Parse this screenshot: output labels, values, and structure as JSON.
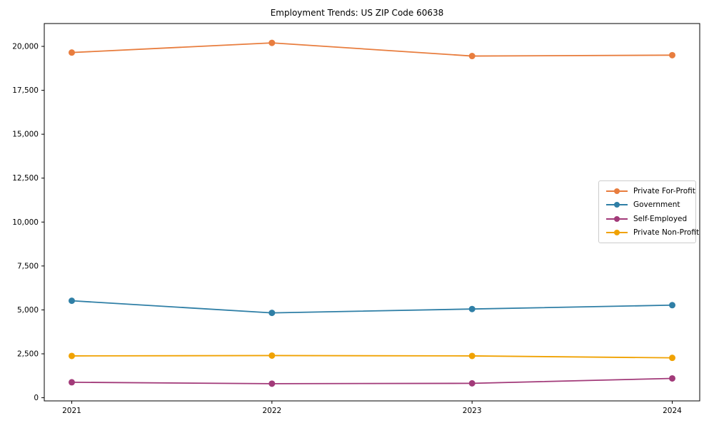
{
  "title": "Employment Trends: US ZIP Code 60638",
  "chart_data": {
    "type": "line",
    "title": "Employment Trends: US ZIP Code 60638",
    "categories": [
      "2021",
      "2022",
      "2023",
      "2024"
    ],
    "series": [
      {
        "name": "Private For-Profit",
        "color": "#e87d3e",
        "values": [
          19650,
          20200,
          19450,
          19500
        ]
      },
      {
        "name": "Government",
        "color": "#2f7fa6",
        "values": [
          5520,
          4830,
          5050,
          5270
        ]
      },
      {
        "name": "Self-Employed",
        "color": "#a23a79",
        "values": [
          880,
          800,
          820,
          1100
        ]
      },
      {
        "name": "Private Non-Profit",
        "color": "#f0a202",
        "values": [
          2380,
          2400,
          2380,
          2270
        ]
      }
    ],
    "xlabel": "",
    "ylabel": "",
    "ylim": [
      -180,
      21300
    ],
    "yticks": [
      0,
      2500,
      5000,
      7500,
      10000,
      12500,
      15000,
      17500,
      20000
    ],
    "grid": false,
    "legend_position": "center-right",
    "marker": "circle",
    "axis_color": "#000000"
  }
}
